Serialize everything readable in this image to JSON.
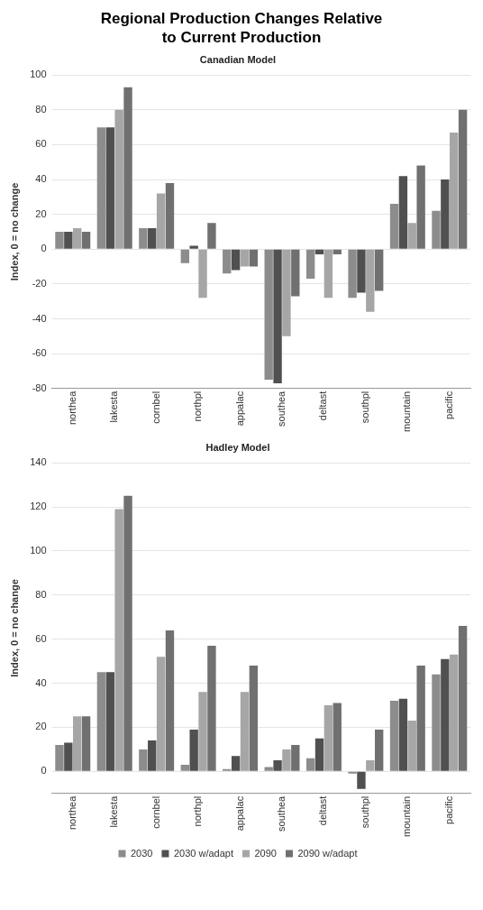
{
  "chart_data": [
    {
      "type": "bar",
      "title": "Regional Production Changes Relative to Current Production",
      "subtitle": "Canadian Model",
      "ylabel": "Index, 0 = no change",
      "categories": [
        "northea",
        "lakesta",
        "cornbel",
        "northpl",
        "appalac",
        "southea",
        "deltast",
        "southpl",
        "mountain",
        "pacific"
      ],
      "ylim": [
        -80,
        100
      ],
      "yticks": [
        -80,
        -60,
        -40,
        -20,
        0,
        20,
        40,
        60,
        80,
        100
      ],
      "grid": "y",
      "legend": false,
      "series": [
        {
          "color": "#8c8c8c",
          "values": [
            10,
            70,
            12,
            -8,
            -14,
            -75,
            -17,
            -28,
            26,
            22
          ]
        },
        {
          "color": "#505050",
          "values": [
            10,
            70,
            12,
            2,
            -12,
            -77,
            -3,
            -25,
            42,
            40
          ]
        },
        {
          "color": "#a6a6a6",
          "values": [
            12,
            80,
            32,
            -28,
            -10,
            -50,
            -28,
            -36,
            15,
            67
          ]
        },
        {
          "color": "#707070",
          "values": [
            10,
            93,
            38,
            15,
            -10,
            -27,
            -3,
            -24,
            48,
            80
          ]
        }
      ]
    },
    {
      "type": "bar",
      "subtitle": "Hadley Model",
      "ylabel": "Index, 0 = no change",
      "categories": [
        "northea",
        "lakesta",
        "cornbel",
        "northpl",
        "appalac",
        "southea",
        "deltast",
        "southpl",
        "mountain",
        "pacific"
      ],
      "ylim": [
        -10,
        140
      ],
      "yticks": [
        0,
        20,
        40,
        60,
        80,
        100,
        120,
        140
      ],
      "grid": "y",
      "legend": "bottom",
      "series": [
        {
          "name": "2030",
          "color": "#8c8c8c",
          "values": [
            12,
            45,
            10,
            3,
            1,
            2,
            6,
            -1,
            32,
            44
          ]
        },
        {
          "name": "2030 w/adapt",
          "color": "#505050",
          "values": [
            13,
            45,
            14,
            19,
            7,
            5,
            15,
            -8,
            33,
            51
          ]
        },
        {
          "name": "2090",
          "color": "#a6a6a6",
          "values": [
            25,
            119,
            52,
            36,
            36,
            10,
            30,
            5,
            23,
            53
          ]
        },
        {
          "name": "2090 w/adapt",
          "color": "#707070",
          "values": [
            25,
            125,
            64,
            57,
            48,
            12,
            31,
            19,
            48,
            66
          ]
        }
      ]
    }
  ]
}
